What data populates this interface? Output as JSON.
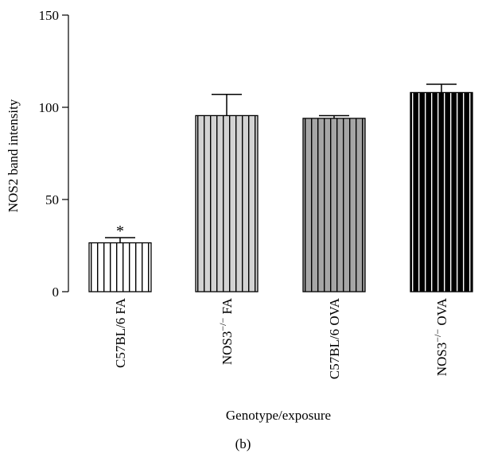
{
  "chart_data": {
    "type": "bar",
    "ylabel": "NOS2 band intensity",
    "xlabel": "Genotype/exposure",
    "ylim": [
      0,
      150
    ],
    "yticks": [
      0,
      50,
      100,
      150
    ],
    "categories": [
      {
        "pre": "C57BL/6 FA",
        "sup": "",
        "post": ""
      },
      {
        "pre": "NOS3",
        "sup": "−/−",
        "post": " FA"
      },
      {
        "pre": "C57BL/6 OVA",
        "sup": "",
        "post": ""
      },
      {
        "pre": "NOS3",
        "sup": "−/−",
        "post": " OVA"
      }
    ],
    "values": [
      26.5,
      95.5,
      94,
      108
    ],
    "errors": [
      2.8,
      11.5,
      1.5,
      4.5
    ],
    "annotations": [
      "*",
      "",
      "",
      ""
    ],
    "bar_fills": [
      "#ffffff",
      "#d3d3d3",
      "#a6a6a6",
      "#000000"
    ],
    "stripe_colors": [
      "#000000",
      "#000000",
      "#000000",
      "#ffffff"
    ]
  },
  "panel_label": "(b)"
}
